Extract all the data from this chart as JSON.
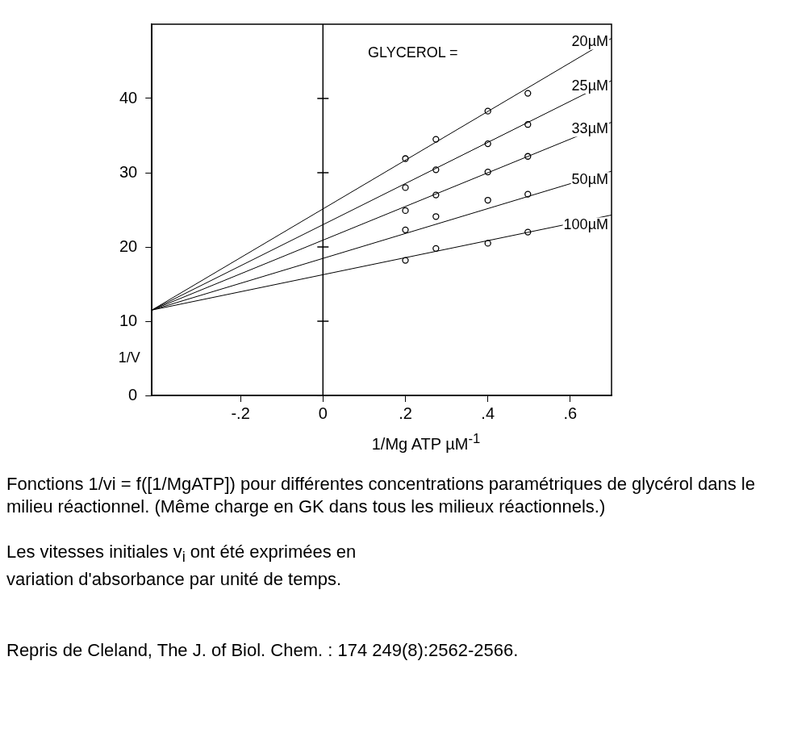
{
  "chart_data": {
    "type": "line",
    "xlabel": "1/Mg ATP µM$^{-1}$",
    "ylabel": "1/V",
    "legend_title": "GLYCEROL =",
    "legend": false,
    "xlim": [
      -0.415,
      0.7
    ],
    "ylim": [
      0,
      50
    ],
    "xticks": [
      {
        "value": -0.2,
        "label": "-.2"
      },
      0,
      {
        "value": 0.2,
        "label": ".2"
      },
      {
        "value": 0.4,
        "label": ".4"
      },
      {
        "value": 0.6,
        "label": ".6"
      }
    ],
    "yticks": [
      0,
      10,
      20,
      30,
      40
    ],
    "ref_lines": [
      {
        "axis": "x",
        "value": 0
      }
    ],
    "series": [
      {
        "name": "20µM",
        "type": "line",
        "color": "#000000",
        "marker": "none",
        "line_style": "solid",
        "x": [
          -0.415,
          0.7
        ],
        "values": [
          11.5,
          48.1
        ]
      },
      {
        "name": "25µM",
        "type": "line",
        "color": "#000000",
        "marker": "none",
        "line_style": "solid",
        "x": [
          -0.415,
          0.7
        ],
        "values": [
          11.5,
          42.4
        ]
      },
      {
        "name": "33µM",
        "type": "line",
        "color": "#000000",
        "marker": "none",
        "line_style": "solid",
        "x": [
          -0.415,
          0.7
        ],
        "values": [
          11.5,
          36.8
        ]
      },
      {
        "name": "50µM",
        "type": "line",
        "color": "#000000",
        "marker": "none",
        "line_style": "solid",
        "x": [
          -0.415,
          0.7
        ],
        "values": [
          11.5,
          30.2
        ]
      },
      {
        "name": "100µM",
        "type": "line",
        "color": "#000000",
        "marker": "none",
        "line_style": "solid",
        "x": [
          -0.415,
          0.7
        ],
        "values": [
          11.5,
          24.3
        ]
      },
      {
        "type": "scatter",
        "color": "#000000",
        "marker": "circle",
        "x": [
          0.2,
          0.274,
          0.4,
          0.497
        ],
        "values": [
          31.9,
          34.5,
          38.3,
          40.7
        ]
      },
      {
        "type": "scatter",
        "color": "#000000",
        "marker": "circle",
        "x": [
          0.2,
          0.274,
          0.4,
          0.497
        ],
        "values": [
          28.0,
          30.4,
          33.9,
          36.5
        ]
      },
      {
        "type": "scatter",
        "color": "#000000",
        "marker": "circle",
        "x": [
          0.2,
          0.274,
          0.4,
          0.497
        ],
        "values": [
          24.9,
          27.0,
          30.1,
          32.2
        ]
      },
      {
        "type": "scatter",
        "color": "#000000",
        "marker": "circle",
        "x": [
          0.2,
          0.274,
          0.4,
          0.497
        ],
        "values": [
          22.3,
          24.1,
          26.3,
          27.1
        ]
      },
      {
        "type": "scatter",
        "color": "#000000",
        "marker": "circle",
        "x": [
          0.2,
          0.274,
          0.4,
          0.497
        ],
        "values": [
          18.2,
          19.8,
          20.5,
          22.0
        ]
      }
    ],
    "annotations": [
      "Fonctions 1/vi = f([1/MgATP]) pour différentes concentrations paramétriques de glycérol dans le milieu réactionnel. (Même charge en GK dans tous les milieux réactionnels.)",
      "Les vitesses initiales v$_{i}$ ont été exprimées en variation d'absorbance par unité de temps.",
      "Repris  de Cleland, The J. of Biol. Chem. : 174  249(8):2562-2566."
    ]
  }
}
